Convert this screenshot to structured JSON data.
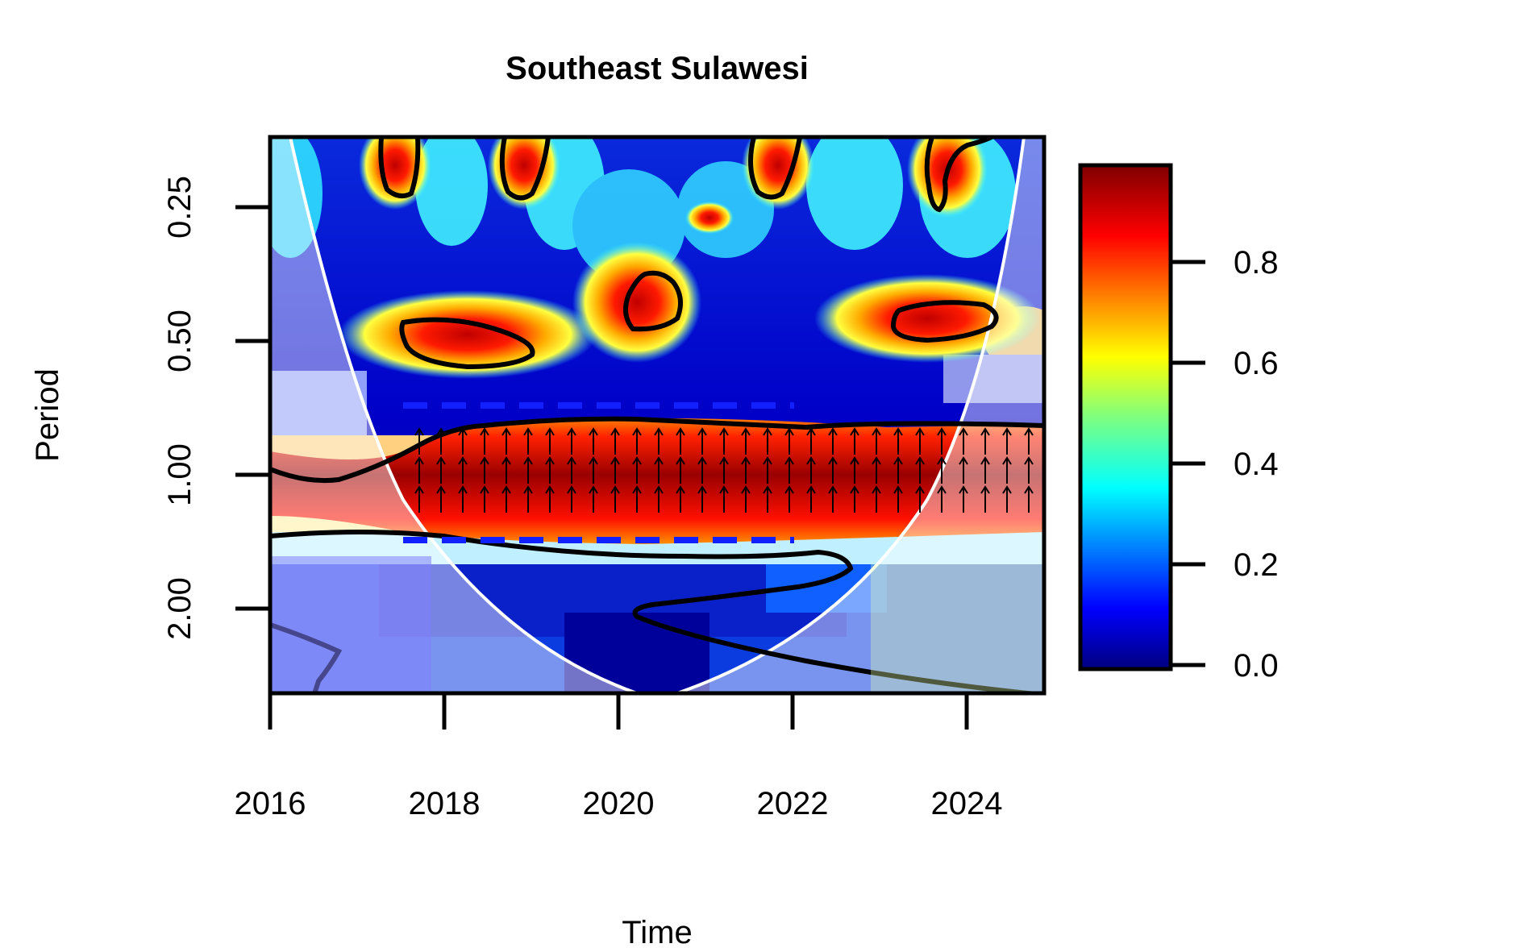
{
  "chart_data": {
    "type": "heatmap",
    "title": "Southeast Sulawesi",
    "xlabel": "Time",
    "ylabel": "Period",
    "x_ticks": [
      "2016",
      "2018",
      "2020",
      "2022",
      "2024"
    ],
    "y_ticks": [
      "0.25",
      "0.50",
      "1.00",
      "2.00"
    ],
    "xlim": [
      2016,
      2024.9
    ],
    "ylim_period": [
      0.17,
      3.2
    ],
    "y_scale": "log2, reversed (small periods at top)",
    "colorbar": {
      "ticks": [
        "0.0",
        "0.2",
        "0.4",
        "0.6",
        "0.8"
      ],
      "range": [
        0,
        1
      ],
      "palette": "jet (dark blue to dark red)"
    },
    "high_power_regions": [
      {
        "x": [
          2017.0,
          2024.9
        ],
        "period": [
          0.8,
          1.3
        ],
        "value": 0.9,
        "note": "main coherent band, in-phase arrows"
      },
      {
        "x": [
          2017.6,
          2019.0
        ],
        "period": [
          0.45,
          0.58
        ],
        "value": 0.85
      },
      {
        "x": [
          2020.0,
          2020.6
        ],
        "period": [
          0.36,
          0.47
        ],
        "value": 0.85
      },
      {
        "x": [
          2023.3,
          2024.4
        ],
        "period": [
          0.42,
          0.5
        ],
        "value": 0.85
      },
      {
        "x": [
          2017.2,
          2017.8
        ],
        "period": [
          0.17,
          0.28
        ],
        "value": 0.85
      },
      {
        "x": [
          2018.6,
          2019.3
        ],
        "period": [
          0.17,
          0.28
        ],
        "value": 0.85
      },
      {
        "x": [
          2021.5,
          2022.1
        ],
        "period": [
          0.17,
          0.27
        ],
        "value": 0.85
      },
      {
        "x": [
          2023.6,
          2024.3
        ],
        "period": [
          0.17,
          0.3
        ],
        "value": 0.8
      }
    ],
    "grid": false,
    "legend": "colorbar right"
  }
}
